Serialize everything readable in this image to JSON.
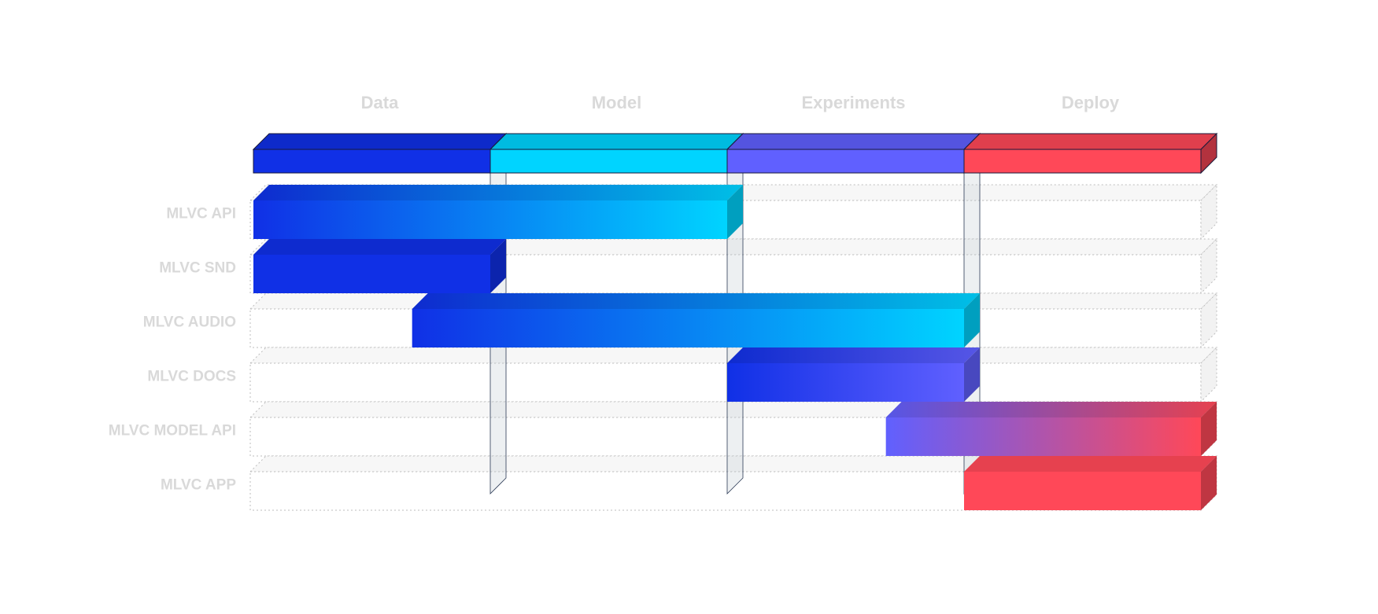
{
  "phases": [
    {
      "label": "Data",
      "color": "#1030e6"
    },
    {
      "label": "Model",
      "color": "#00d4ff"
    },
    {
      "label": "Experiments",
      "color": "#6060ff"
    },
    {
      "label": "Deploy",
      "color": "#ff4858"
    }
  ],
  "rows": [
    {
      "label": "MLVC API",
      "start_phase": 0,
      "end_phase": 2,
      "color_from": "#1030e6",
      "color_to": "#00d4ff"
    },
    {
      "label": "MLVC SND",
      "start_phase": 0,
      "end_phase": 1,
      "color_from": "#1030e6",
      "color_to": "#1030e6"
    },
    {
      "label": "MLVC AUDIO",
      "start_phase": 0.67,
      "end_phase": 3,
      "color_from": "#1030e6",
      "color_to": "#00d4ff"
    },
    {
      "label": "MLVC DOCS",
      "start_phase": 2,
      "end_phase": 3,
      "color_from": "#1030e6",
      "color_to": "#6060ff"
    },
    {
      "label": "MLVC MODEL API",
      "start_phase": 2.67,
      "end_phase": 4,
      "color_from": "#6060ff",
      "color_to": "#ff4858"
    },
    {
      "label": "MLVC APP",
      "start_phase": 3,
      "end_phase": 4,
      "color_from": "#ff4858",
      "color_to": "#ff4858"
    }
  ]
}
